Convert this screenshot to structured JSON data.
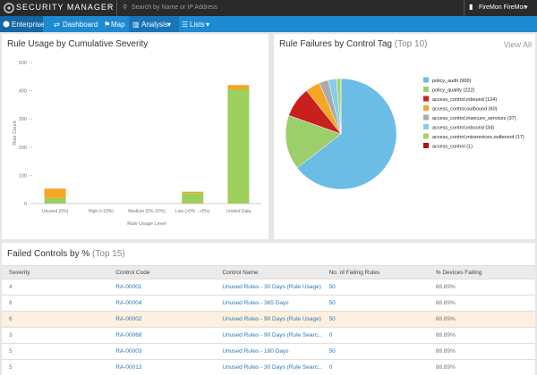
{
  "header": {
    "logo": "SECURITY MANAGER",
    "search_placeholder": "Search by Name or IP Address",
    "user": "FireMon FireMon"
  },
  "nav": {
    "items": [
      "Enterprise",
      "Dashboard",
      "Map",
      "Analysis",
      "Lists"
    ]
  },
  "rule_usage": {
    "type": "bar",
    "title": "Rule Usage by Cumulative Severity",
    "categories": [
      "Unused (0%)",
      "High (<10%)",
      "Medium (5%-10%)",
      "Low (>0% - <5%)",
      "Limited Data"
    ],
    "series": [
      {
        "color": "#9ccf5c",
        "values": [
          20,
          0,
          0,
          37,
          405
        ]
      },
      {
        "color": "#f5a623",
        "values": [
          33,
          0,
          0,
          5,
          15
        ]
      }
    ],
    "ylim": [
      0,
      500
    ],
    "yticks": [
      0,
      100,
      200,
      300,
      400,
      500
    ],
    "y_label": "Rule Count",
    "x_label": "Rule Usage Level"
  },
  "rule_failures": {
    "type": "pie",
    "title": "Rule Failures by Control Tag",
    "title_note": "(Top 10)",
    "link": "View All",
    "labels": [
      "policy_audit (900)",
      "policy_quality (222)",
      "access_control,inbound (124)",
      "access_control,outbound (60)",
      "access_control,insecure_services (37)",
      "access_control,inbound (34)",
      "access_control,missrevices,outbound (17)",
      "access_control (1)"
    ],
    "values": [
      900,
      222,
      124,
      60,
      37,
      34,
      17,
      1
    ],
    "colors": [
      "#6bbde6",
      "#9ccf6b",
      "#c9201e",
      "#f5a623",
      "#aaaaaa",
      "#86cdeb",
      "#a5d46a",
      "#b01010"
    ]
  },
  "failed_controls": {
    "title": "Failed Controls by %",
    "title_note": "(Top 15)",
    "columns": [
      "Severity",
      "Control Code",
      "Control Name",
      "No. of Failing Rules",
      "% Devices Failing"
    ],
    "rows": [
      [
        "4",
        "RA-00001",
        "Unused Rules - 30 Days (Rule Usage)",
        "50",
        "88.89%"
      ],
      [
        "8",
        "RA-00004",
        "Unused Rules - 365 Days",
        "50",
        "88.89%"
      ],
      [
        "6",
        "RA-00002",
        "Unused Rules - 90 Days (Rule Usage)",
        "50",
        "88.89%"
      ],
      [
        "3",
        "RA-00068",
        "Unused Rules - 90 Days (Rule Searc...",
        "0",
        "88.89%"
      ],
      [
        "5",
        "RA-00003",
        "Unused Rules - 180 Days",
        "50",
        "88.89%"
      ],
      [
        "5",
        "RA-00013",
        "Unused Rules - 30 Days (Rule Searc...",
        "0",
        "88.89%"
      ]
    ]
  }
}
